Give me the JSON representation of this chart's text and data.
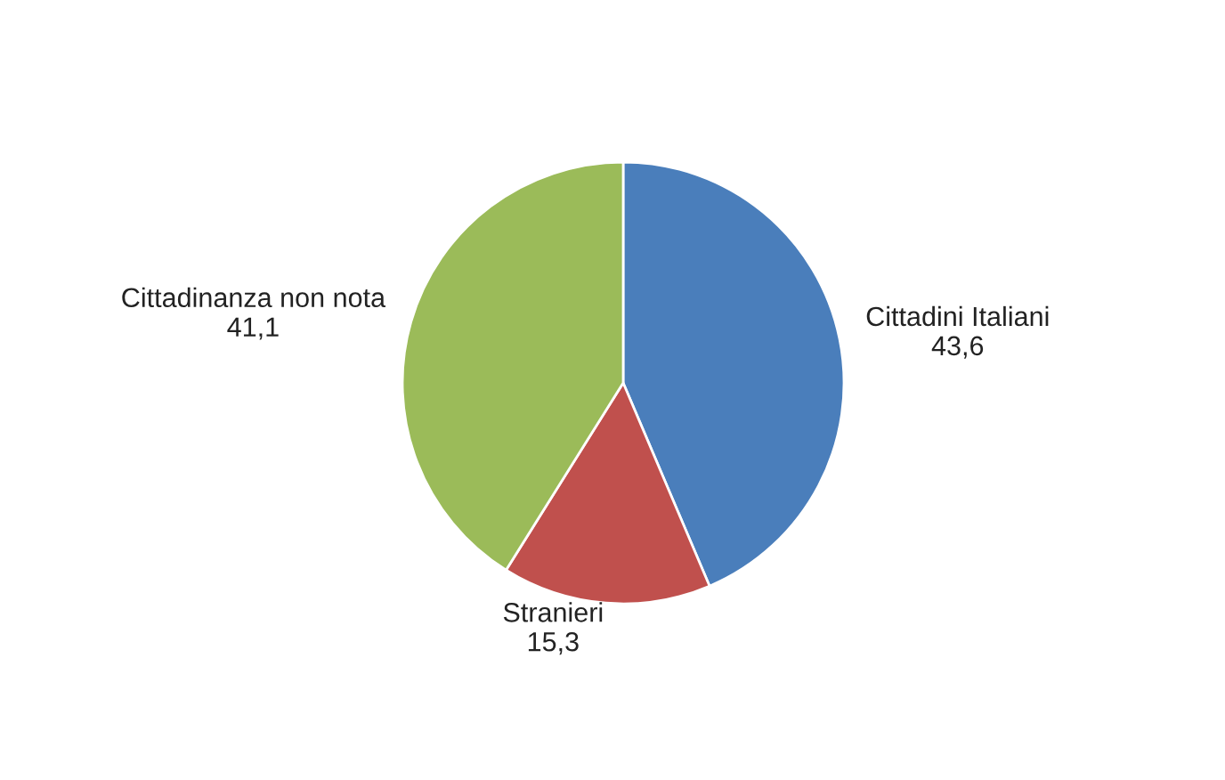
{
  "chart_data": {
    "type": "pie",
    "categories": [
      "Cittadini Italiani",
      "Stranieri",
      "Cittadinanza non nota"
    ],
    "values": [
      43.6,
      15.3,
      41.1
    ],
    "value_labels": [
      "43,6",
      "15,3",
      "41,1"
    ],
    "colors": [
      "#4a7ebb",
      "#c0504d",
      "#9bbb59"
    ],
    "legend": false
  }
}
